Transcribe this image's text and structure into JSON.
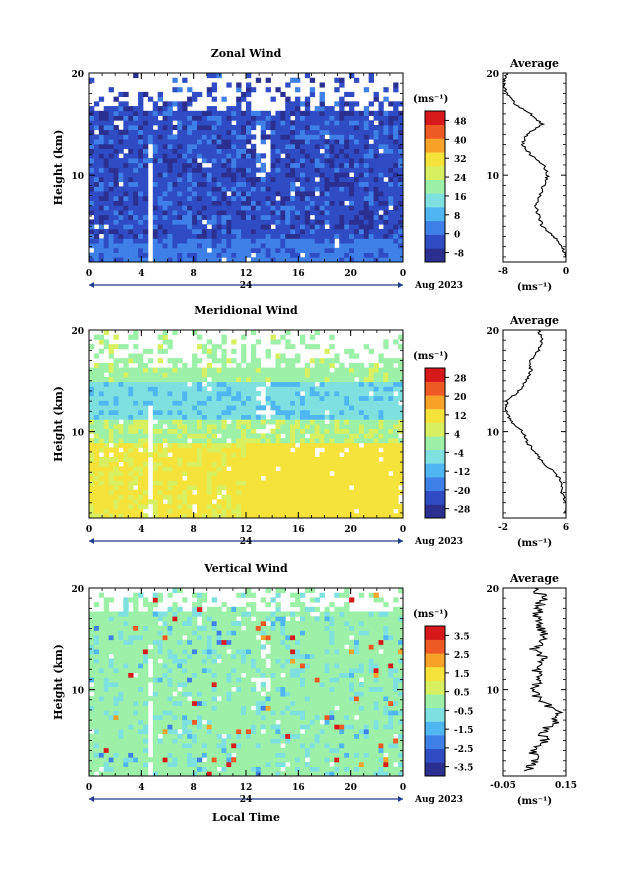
{
  "x_tick_labels": [
    "0",
    "4",
    "8",
    "12",
    "16",
    "20",
    "0"
  ],
  "day_label": "24",
  "date_label": "Aug 2023",
  "y_axis_label": "Height (km)",
  "y_tick_labels": [
    "10",
    "20"
  ],
  "unit_label": "(ms⁻¹)",
  "xlabel": "Local Time",
  "average_title": "Average",
  "chart_data": [
    {
      "type": "heatmap",
      "title": "Zonal Wind",
      "xlabel": "",
      "ylabel": "Height (km)",
      "xlim": [
        0,
        24
      ],
      "ylim": [
        1.5,
        20
      ],
      "x_ticks": [
        0,
        4,
        8,
        12,
        16,
        20,
        24
      ],
      "y_ticks": [
        10,
        20
      ],
      "colorbar": {
        "ticks": [
          "48",
          "40",
          "32",
          "24",
          "16",
          "8",
          "0",
          "-8"
        ],
        "range": [
          -12,
          52
        ]
      },
      "average_profile": {
        "title": "Average",
        "xlim": [
          -8,
          0
        ],
        "x_ticks": [
          "-8",
          "0"
        ],
        "height_km": [
          2,
          3,
          4,
          5,
          6,
          7,
          8,
          9,
          10,
          11,
          12,
          13,
          14,
          15,
          16,
          17,
          18,
          19,
          20
        ],
        "value": [
          0,
          -0.5,
          -1.5,
          -3,
          -3.5,
          -3.8,
          -3.3,
          -2.8,
          -2.3,
          -2.8,
          -4.5,
          -5.5,
          -5,
          -3,
          -4.5,
          -6.5,
          -7.5,
          -8,
          -7.5
        ]
      }
    },
    {
      "type": "heatmap",
      "title": "Meridional Wind",
      "xlabel": "",
      "ylabel": "Height (km)",
      "xlim": [
        0,
        24
      ],
      "ylim": [
        1.5,
        20
      ],
      "x_ticks": [
        0,
        4,
        8,
        12,
        16,
        20,
        24
      ],
      "y_ticks": [
        10,
        20
      ],
      "colorbar": {
        "ticks": [
          "28",
          "20",
          "12",
          "4",
          "-4",
          "-12",
          "-20",
          "-28"
        ],
        "range": [
          -32,
          32
        ]
      },
      "average_profile": {
        "title": "Average",
        "xlim": [
          -2,
          6
        ],
        "x_ticks": [
          "-2",
          "6"
        ],
        "height_km": [
          2,
          3,
          4,
          5,
          6,
          7,
          8,
          9,
          10,
          11,
          12,
          13,
          14,
          15,
          16,
          17,
          18,
          19,
          20
        ],
        "value": [
          6,
          6,
          5.5,
          5.5,
          4.5,
          3,
          2,
          1,
          0.5,
          -1,
          -1.5,
          -1.5,
          0,
          1,
          1.5,
          1.5,
          2.5,
          3,
          2.5
        ]
      }
    },
    {
      "type": "heatmap",
      "title": "Vertical Wind",
      "xlabel": "Local Time",
      "ylabel": "Height (km)",
      "xlim": [
        0,
        24
      ],
      "ylim": [
        1.5,
        20
      ],
      "x_ticks": [
        0,
        4,
        8,
        12,
        16,
        20,
        24
      ],
      "y_ticks": [
        10,
        20
      ],
      "colorbar": {
        "ticks": [
          "3.5",
          "2.5",
          "1.5",
          "0.5",
          "-0.5",
          "-1.5",
          "-2.5",
          "-3.5"
        ],
        "range": [
          -4,
          4
        ]
      },
      "average_profile": {
        "title": "Average",
        "xlim": [
          -0.05,
          0.15
        ],
        "x_ticks": [
          "-0.05",
          "0.15"
        ],
        "height_km": [
          2,
          3,
          4,
          5,
          6,
          7,
          8,
          9,
          10,
          11,
          12,
          13,
          14,
          15,
          16,
          17,
          18,
          19,
          20
        ],
        "value": [
          0.03,
          0.05,
          0.05,
          0.08,
          0.08,
          0.12,
          0.12,
          0.06,
          0.04,
          0.07,
          0.05,
          0.08,
          0.05,
          0.09,
          0.07,
          0.06,
          0.06,
          0.08,
          0.05
        ]
      }
    }
  ]
}
